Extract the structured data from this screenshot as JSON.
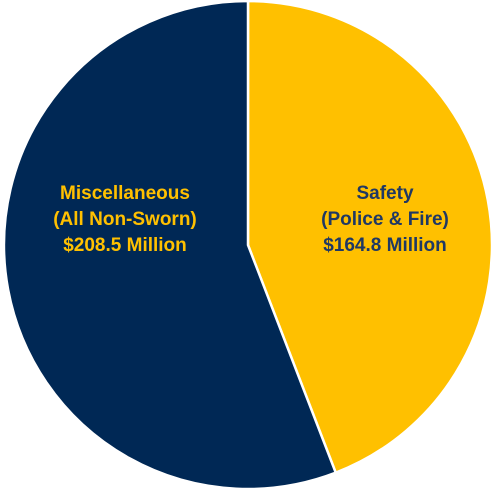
{
  "chart_data": {
    "type": "pie",
    "unit": "Million",
    "slices": [
      {
        "name": "Safety",
        "sub": "(Police & Fire)",
        "amount": "$164.8 Million",
        "value": 164.8,
        "color": "#FFC000",
        "label_color": "#1F3864"
      },
      {
        "name": "Miscellaneous",
        "sub": "(All Non-Sworn)",
        "amount": "$208.5 Million",
        "value": 208.5,
        "color": "#002855",
        "label_color": "#FFC000"
      }
    ]
  }
}
